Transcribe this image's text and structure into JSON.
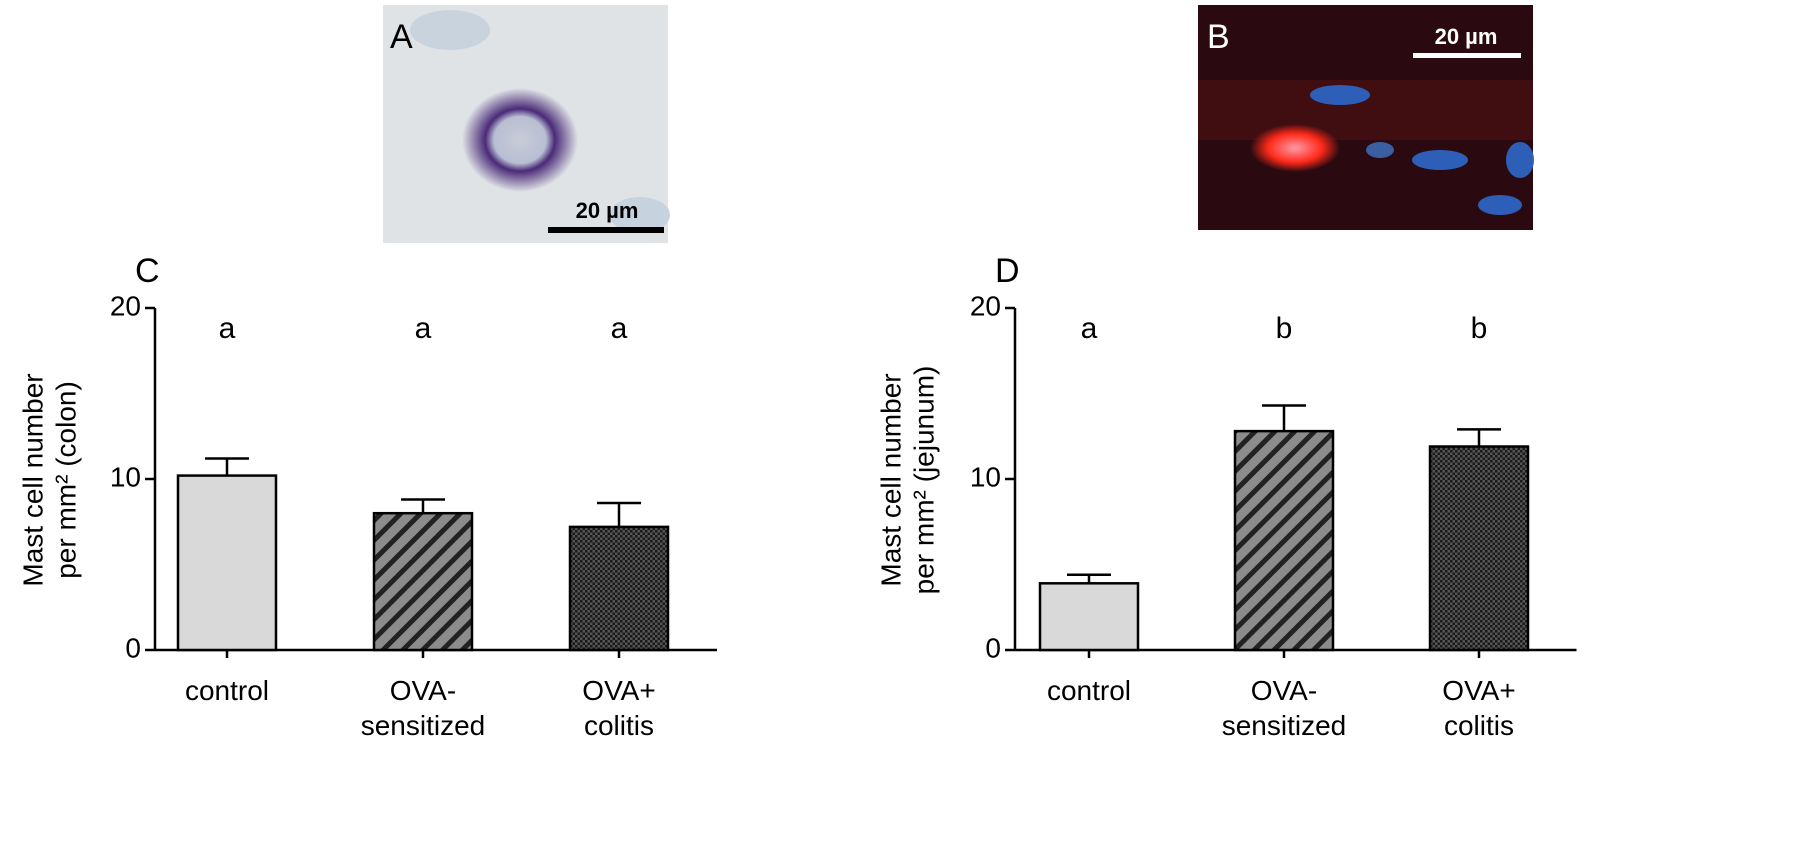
{
  "images": [
    {
      "label": "A",
      "scale_bar": "20 µm"
    },
    {
      "label": "B",
      "scale_bar": "20 µm"
    }
  ],
  "chart_data": [
    {
      "type": "bar",
      "title": "C",
      "y_label": [
        "Mast cell number",
        "per mm² (colon)"
      ],
      "categories": [
        [
          "control"
        ],
        [
          "OVA-",
          "sensitized"
        ],
        [
          "OVA+",
          "colitis"
        ]
      ],
      "values": [
        10.2,
        8.0,
        7.2
      ],
      "errors": [
        1.0,
        0.8,
        1.4
      ],
      "annotations": [
        "a",
        "a",
        "a"
      ],
      "colors": [
        "#d9d9d9",
        "#8c8c8c",
        "#3a3a3a"
      ],
      "patterns": [
        "solid",
        "hatch",
        "crosshatch"
      ],
      "ylim": [
        0,
        20
      ],
      "yticks": [
        0,
        10,
        20
      ]
    },
    {
      "type": "bar",
      "title": "D",
      "y_label": [
        "Mast cell number",
        "per mm² (jejunum)"
      ],
      "categories": [
        [
          "control"
        ],
        [
          "OVA-",
          "sensitized"
        ],
        [
          "OVA+",
          "colitis"
        ]
      ],
      "values": [
        3.9,
        12.8,
        11.9
      ],
      "errors": [
        0.5,
        1.5,
        1.0
      ],
      "annotations": [
        "a",
        "b",
        "b"
      ],
      "colors": [
        "#d9d9d9",
        "#8c8c8c",
        "#3a3a3a"
      ],
      "patterns": [
        "solid",
        "hatch",
        "crosshatch"
      ],
      "ylim": [
        0,
        20
      ],
      "yticks": [
        0,
        10,
        20
      ]
    }
  ]
}
